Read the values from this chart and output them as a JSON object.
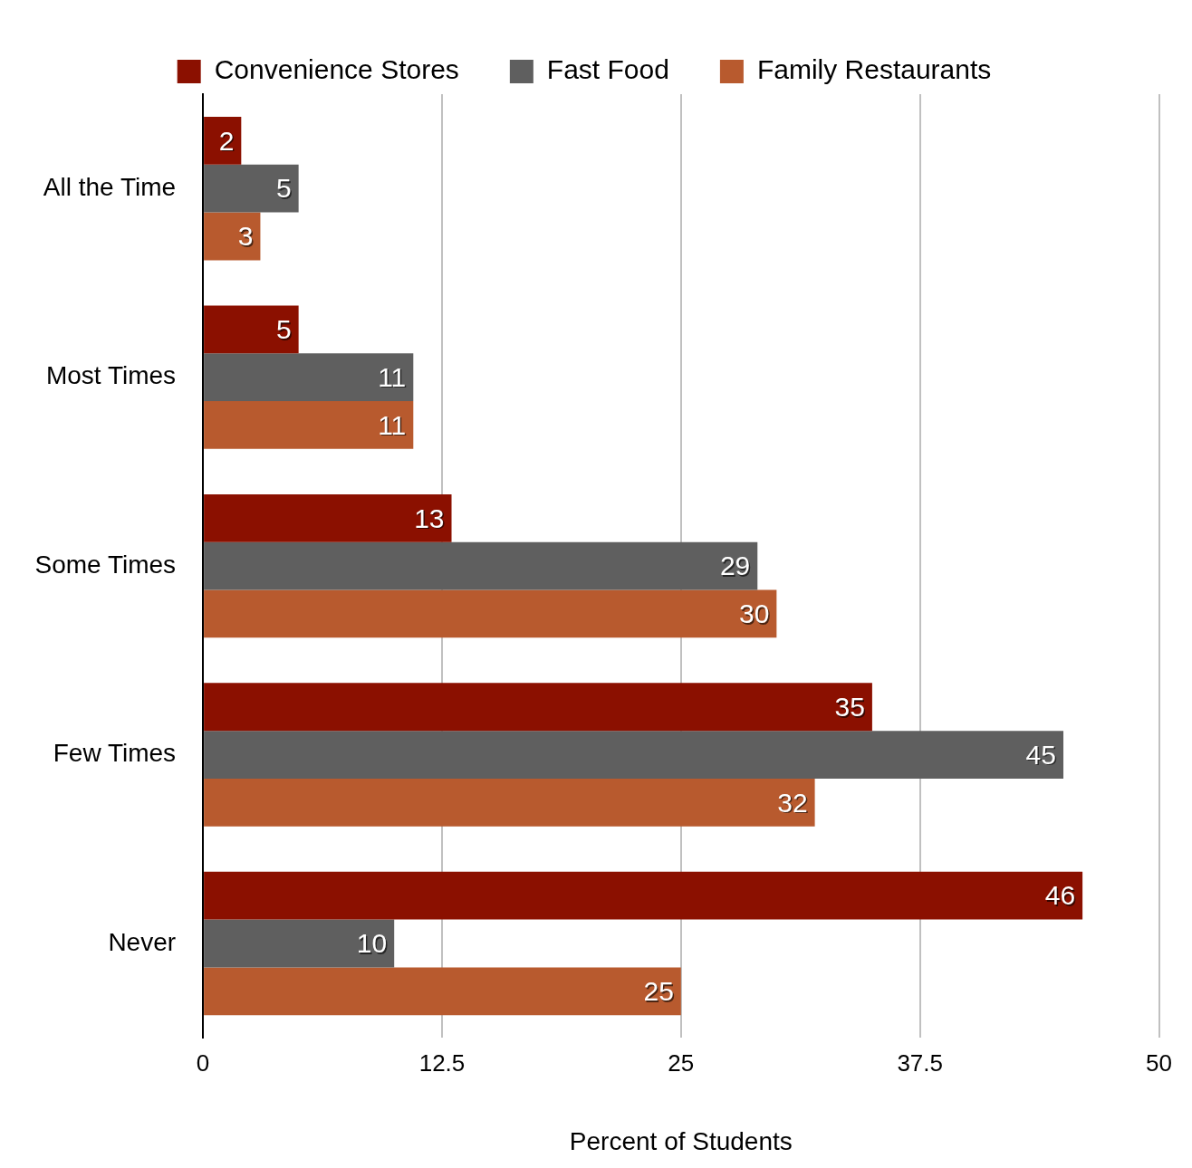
{
  "chart_data": {
    "type": "bar",
    "orientation": "horizontal",
    "xlabel": "Percent of Students",
    "categories": [
      "All the Time",
      "Most Times",
      "Some Times",
      "Few Times",
      "Never"
    ],
    "series": [
      {
        "name": "Convenience Stores",
        "color": "#8b1000",
        "values": [
          2,
          5,
          13,
          35,
          46
        ]
      },
      {
        "name": "Fast Food",
        "color": "#5f5f5f",
        "values": [
          5,
          11,
          29,
          45,
          10
        ]
      },
      {
        "name": "Family Restaurants",
        "color": "#b85a2e",
        "values": [
          3,
          11,
          30,
          32,
          25
        ]
      }
    ],
    "xlim": [
      0,
      50
    ],
    "xticks": [
      0,
      12.5,
      25,
      37.5,
      50
    ],
    "grid": "x",
    "legend": "top",
    "data_labels": true
  }
}
